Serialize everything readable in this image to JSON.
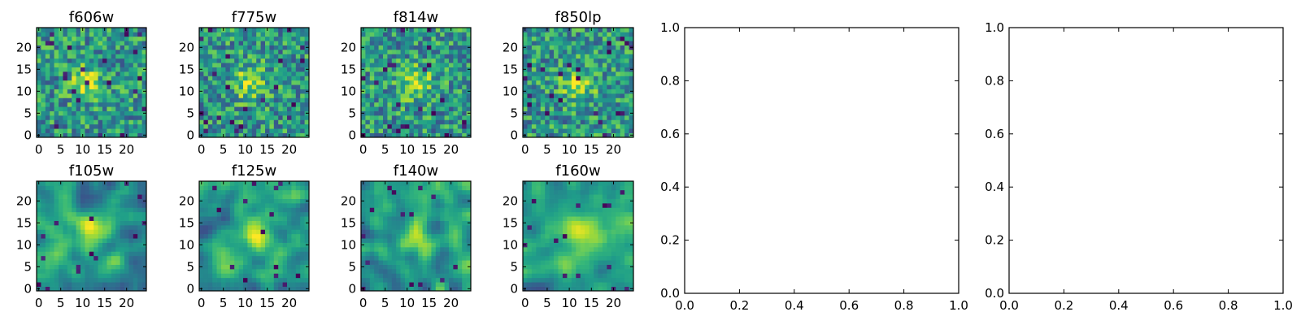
{
  "chart_data": [
    {
      "type": "heatmap",
      "title": "f606w",
      "grid_size": 25,
      "xlim": [
        -0.5,
        24.5
      ],
      "ylim": [
        -0.5,
        24.5
      ],
      "xticks": [
        0,
        5,
        10,
        15,
        20
      ],
      "yticks": [
        0,
        5,
        10,
        15,
        20
      ],
      "colormap": "viridis",
      "seed": 11,
      "peak": [
        11,
        12
      ],
      "smooth": false
    },
    {
      "type": "heatmap",
      "title": "f775w",
      "grid_size": 25,
      "xlim": [
        -0.5,
        24.5
      ],
      "ylim": [
        -0.5,
        24.5
      ],
      "xticks": [
        0,
        5,
        10,
        15,
        20
      ],
      "yticks": [
        0,
        5,
        10,
        15,
        20
      ],
      "colormap": "viridis",
      "seed": 23,
      "peak": [
        11,
        12
      ],
      "smooth": false
    },
    {
      "type": "heatmap",
      "title": "f814w",
      "grid_size": 25,
      "xlim": [
        -0.5,
        24.5
      ],
      "ylim": [
        -0.5,
        24.5
      ],
      "xticks": [
        0,
        5,
        10,
        15,
        20
      ],
      "yticks": [
        0,
        5,
        10,
        15,
        20
      ],
      "colormap": "viridis",
      "seed": 37,
      "peak": [
        12,
        12
      ],
      "smooth": false
    },
    {
      "type": "heatmap",
      "title": "f850lp",
      "grid_size": 25,
      "xlim": [
        -0.5,
        24.5
      ],
      "ylim": [
        -0.5,
        24.5
      ],
      "xticks": [
        0,
        5,
        10,
        15,
        20
      ],
      "yticks": [
        0,
        5,
        10,
        15,
        20
      ],
      "colormap": "viridis",
      "seed": 41,
      "peak": [
        12,
        12
      ],
      "smooth": false
    },
    {
      "type": "heatmap",
      "title": "f105w",
      "grid_size": 25,
      "xlim": [
        -0.5,
        24.5
      ],
      "ylim": [
        -0.5,
        24.5
      ],
      "xticks": [
        0,
        5,
        10,
        15,
        20
      ],
      "yticks": [
        0,
        5,
        10,
        15,
        20
      ],
      "colormap": "viridis",
      "seed": 53,
      "peak": [
        12,
        13
      ],
      "smooth": true
    },
    {
      "type": "heatmap",
      "title": "f125w",
      "grid_size": 25,
      "xlim": [
        -0.5,
        24.5
      ],
      "ylim": [
        -0.5,
        24.5
      ],
      "xticks": [
        0,
        5,
        10,
        15,
        20
      ],
      "yticks": [
        0,
        5,
        10,
        15,
        20
      ],
      "colormap": "viridis",
      "seed": 67,
      "peak": [
        12,
        13
      ],
      "smooth": true
    },
    {
      "type": "heatmap",
      "title": "f140w",
      "grid_size": 25,
      "xlim": [
        -0.5,
        24.5
      ],
      "ylim": [
        -0.5,
        24.5
      ],
      "xticks": [
        0,
        5,
        10,
        15,
        20
      ],
      "yticks": [
        0,
        5,
        10,
        15,
        20
      ],
      "colormap": "viridis",
      "seed": 79,
      "peak": [
        12,
        12
      ],
      "smooth": true
    },
    {
      "type": "heatmap",
      "title": "f160w",
      "grid_size": 25,
      "xlim": [
        -0.5,
        24.5
      ],
      "ylim": [
        -0.5,
        24.5
      ],
      "xticks": [
        0,
        5,
        10,
        15,
        20
      ],
      "yticks": [
        0,
        5,
        10,
        15,
        20
      ],
      "colormap": "viridis",
      "seed": 97,
      "peak": [
        13,
        13
      ],
      "smooth": true
    },
    {
      "type": "line",
      "title": "",
      "xlabel": "",
      "ylabel": "",
      "series": [],
      "xlim": [
        0,
        1
      ],
      "ylim": [
        0,
        1
      ],
      "xticks": [
        "0.0",
        "0.2",
        "0.4",
        "0.6",
        "0.8",
        "1.0"
      ],
      "yticks": [
        "0.0",
        "0.2",
        "0.4",
        "0.6",
        "0.8",
        "1.0"
      ]
    },
    {
      "type": "line",
      "title": "",
      "xlabel": "",
      "ylabel": "",
      "series": [],
      "xlim": [
        0,
        1
      ],
      "ylim": [
        0,
        1
      ],
      "xticks": [
        "0.0",
        "0.2",
        "0.4",
        "0.6",
        "0.8",
        "1.0"
      ],
      "yticks": [
        "0.0",
        "0.2",
        "0.4",
        "0.6",
        "0.8",
        "1.0"
      ]
    }
  ]
}
